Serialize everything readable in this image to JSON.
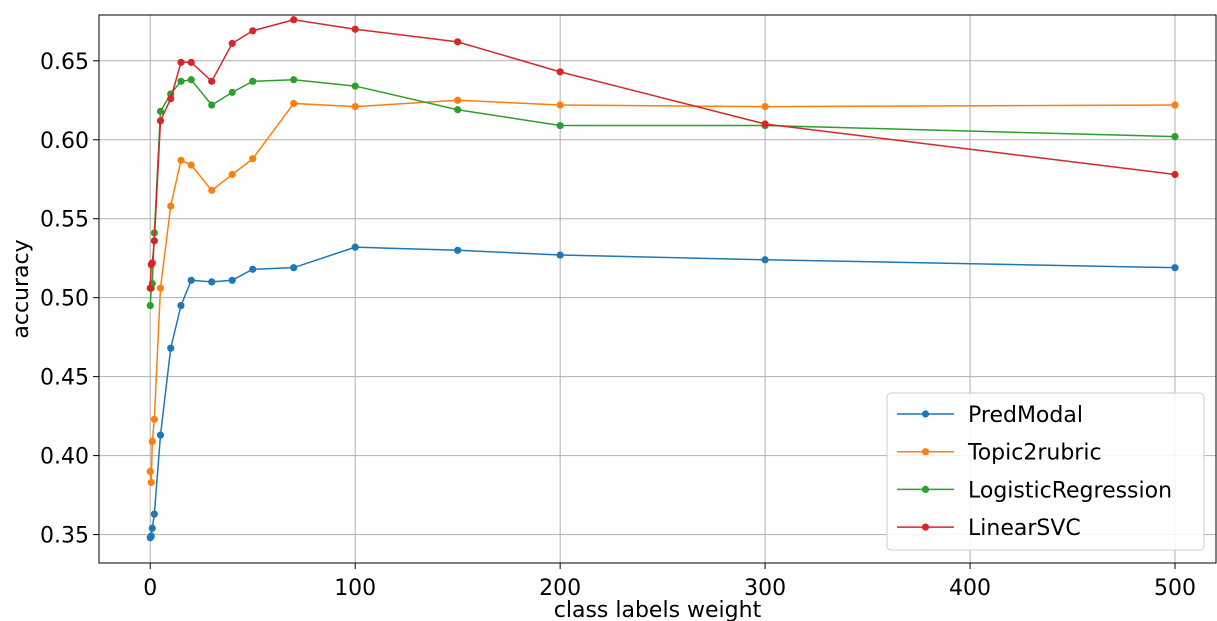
{
  "chart_data": {
    "type": "line",
    "title": "",
    "xlabel": "class labels weight",
    "ylabel": "accuracy",
    "xlim": [
      -25,
      520
    ],
    "ylim": [
      0.332,
      0.679
    ],
    "xticks": [
      0,
      100,
      200,
      300,
      400,
      500
    ],
    "yticks": [
      0.35,
      0.4,
      0.45,
      0.5,
      0.55,
      0.6,
      0.65
    ],
    "xtick_labels": [
      "0",
      "100",
      "200",
      "300",
      "400",
      "500"
    ],
    "ytick_labels": [
      "0.35",
      "0.40",
      "0.45",
      "0.50",
      "0.55",
      "0.60",
      "0.65"
    ],
    "grid": true,
    "legend_position": "lower-right",
    "x": [
      0,
      0.5,
      1,
      2,
      5,
      10,
      15,
      20,
      30,
      40,
      50,
      70,
      100,
      150,
      200,
      300,
      500
    ],
    "series": [
      {
        "name": "PredModal",
        "color": "#1f77b4",
        "values": [
          0.348,
          0.349,
          0.354,
          0.363,
          0.413,
          0.468,
          0.495,
          0.511,
          0.51,
          0.511,
          0.518,
          0.519,
          0.532,
          0.53,
          0.527,
          0.524,
          0.519
        ]
      },
      {
        "name": "Topic2rubric",
        "color": "#ff7f0e",
        "values": [
          0.39,
          0.383,
          0.409,
          0.423,
          0.506,
          0.558,
          0.587,
          0.584,
          0.568,
          0.578,
          0.588,
          0.623,
          0.621,
          0.625,
          0.622,
          0.621,
          0.622
        ]
      },
      {
        "name": "LogisticRegression",
        "color": "#2ca02c",
        "values": [
          0.495,
          0.506,
          0.509,
          0.541,
          0.618,
          0.629,
          0.637,
          0.638,
          0.622,
          0.63,
          0.637,
          0.638,
          0.634,
          0.619,
          0.609,
          0.609,
          0.602
        ]
      },
      {
        "name": "LinearSVC",
        "color": "#d62728",
        "values": [
          0.506,
          0.521,
          0.522,
          0.536,
          0.612,
          0.626,
          0.649,
          0.649,
          0.637,
          0.661,
          0.669,
          0.676,
          0.67,
          0.662,
          0.643,
          0.61,
          0.578
        ]
      }
    ]
  }
}
